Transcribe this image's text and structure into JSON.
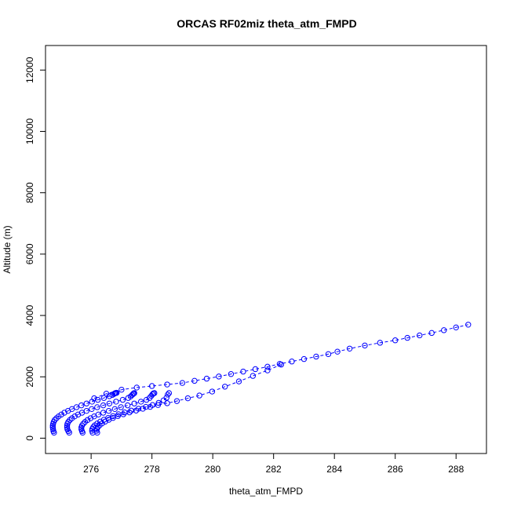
{
  "chart_data": {
    "type": "scatter",
    "title": "ORCAS RF02miz theta_atm_FMPD",
    "xlabel": "theta_atm_FMPD",
    "ylabel": "Altitude (m)",
    "xlim": [
      274.5,
      289.0
    ],
    "ylim": [
      -500,
      12800
    ],
    "xticks": [
      276,
      278,
      280,
      282,
      284,
      286,
      288
    ],
    "xtick_labels": [
      "276",
      "278",
      "280",
      "282",
      "284",
      "286",
      "288"
    ],
    "yticks": [
      0,
      2000,
      4000,
      6000,
      8000,
      10000,
      12000
    ],
    "ytick_labels": [
      "0",
      "2000",
      "4000",
      "6000",
      "8000",
      "10000",
      "12000"
    ],
    "grid": false,
    "marker": "open-circle",
    "color": "#0000ff",
    "series": [
      {
        "x": [
          274.78,
          274.76,
          274.75,
          274.74,
          274.74,
          274.75,
          274.77,
          274.8,
          274.86,
          274.93,
          275.02,
          275.12,
          275.24,
          275.37,
          275.52,
          275.68,
          275.85,
          276.03,
          276.22,
          276.42,
          276.6,
          276.7,
          276.75,
          276.78,
          276.8,
          276.82,
          276.84
        ],
        "y": [
          180,
          230,
          290,
          350,
          410,
          470,
          530,
          590,
          650,
          710,
          770,
          830,
          890,
          950,
          1010,
          1070,
          1130,
          1190,
          1250,
          1310,
          1370,
          1410,
          1440,
          1460,
          1470,
          1475,
          1480
        ]
      },
      {
        "x": [
          275.28,
          275.25,
          275.22,
          275.21,
          275.21,
          275.22,
          275.25,
          275.3,
          275.37,
          275.46,
          275.57,
          275.7,
          275.85,
          276.02,
          276.2,
          276.4,
          276.6,
          276.82,
          277.04,
          277.22,
          277.3,
          277.35,
          277.38,
          277.4,
          277.42
        ],
        "y": [
          180,
          230,
          290,
          350,
          410,
          470,
          530,
          590,
          650,
          710,
          770,
          830,
          890,
          950,
          1010,
          1070,
          1130,
          1190,
          1250,
          1310,
          1360,
          1410,
          1440,
          1460,
          1470
        ]
      },
      {
        "x": [
          275.72,
          275.7,
          275.68,
          275.68,
          275.7,
          275.74,
          275.8,
          275.88,
          275.98,
          276.1,
          276.24,
          276.4,
          276.58,
          276.78,
          276.98,
          277.2,
          277.42,
          277.64,
          277.82,
          277.92,
          277.98,
          278.02,
          278.05,
          278.08
        ],
        "y": [
          180,
          230,
          290,
          350,
          410,
          470,
          530,
          590,
          650,
          710,
          770,
          830,
          890,
          950,
          1010,
          1070,
          1130,
          1190,
          1250,
          1310,
          1380,
          1430,
          1460,
          1470
        ]
      },
      {
        "x": [
          276.05,
          276.03,
          276.04,
          276.07,
          276.12,
          276.2,
          276.3,
          276.42,
          276.56,
          276.72,
          276.9,
          277.1,
          277.32,
          277.56,
          277.8,
          278.02,
          278.22,
          278.38,
          278.48,
          278.52,
          278.56
        ],
        "y": [
          180,
          240,
          300,
          360,
          420,
          480,
          540,
          600,
          660,
          720,
          780,
          840,
          900,
          960,
          1020,
          1080,
          1150,
          1230,
          1320,
          1420,
          1470
        ]
      },
      {
        "x": [
          276.2,
          276.18,
          276.19,
          276.22,
          276.28,
          276.36,
          276.46,
          276.58,
          276.72,
          276.88,
          277.06,
          277.26,
          277.48,
          277.7,
          277.94,
          278.2,
          278.5,
          278.82,
          279.18,
          279.56,
          279.98,
          280.4,
          280.86,
          281.32,
          281.8,
          282.25
        ],
        "y": [
          180,
          240,
          300,
          360,
          420,
          480,
          540,
          600,
          660,
          720,
          780,
          840,
          900,
          960,
          1020,
          1080,
          1140,
          1210,
          1300,
          1390,
          1520,
          1680,
          1850,
          2030,
          2210,
          2400
        ]
      },
      {
        "x": [
          276.1,
          276.5,
          277.0,
          277.5,
          278.0,
          278.5,
          279.0,
          279.4,
          279.8,
          280.2,
          280.6,
          281.0,
          281.4,
          281.8,
          282.2,
          282.6,
          283.0,
          283.4,
          283.8,
          284.1,
          284.5,
          285.0,
          285.5,
          286.0,
          286.4,
          286.8,
          287.2,
          287.6,
          288.0,
          288.4
        ],
        "y": [
          1300,
          1450,
          1580,
          1650,
          1700,
          1750,
          1800,
          1870,
          1940,
          2010,
          2090,
          2170,
          2250,
          2330,
          2420,
          2500,
          2580,
          2660,
          2740,
          2820,
          2920,
          3020,
          3110,
          3190,
          3270,
          3350,
          3430,
          3520,
          3610,
          3700
        ]
      }
    ]
  }
}
